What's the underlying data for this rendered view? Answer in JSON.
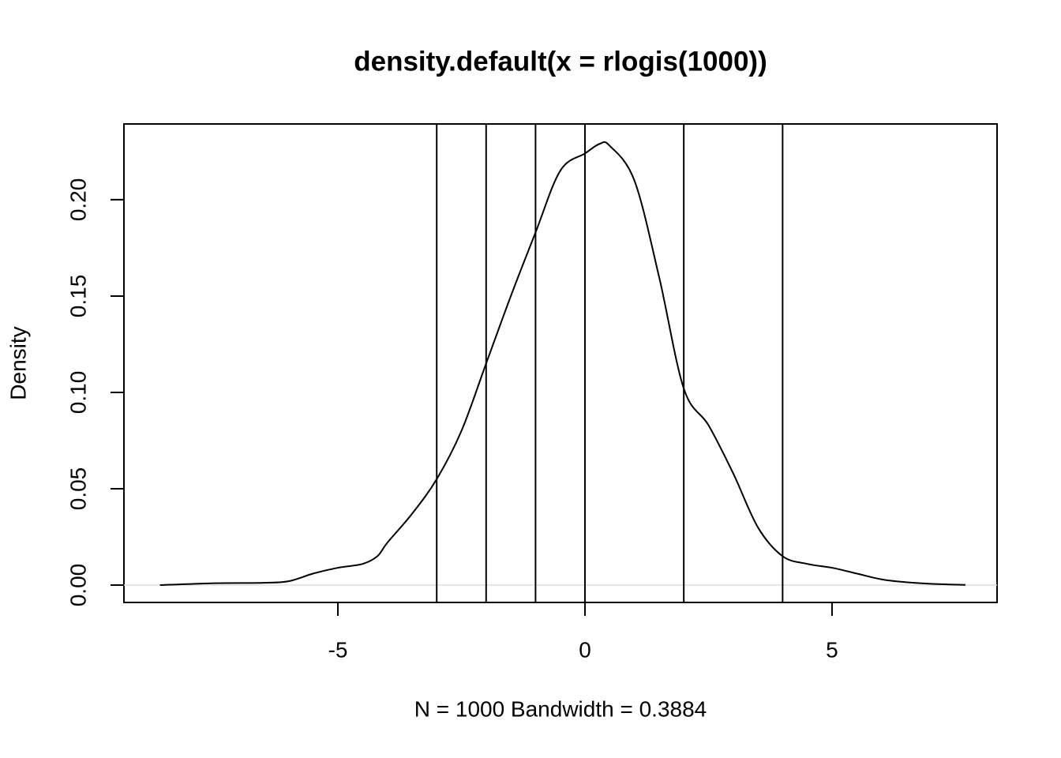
{
  "chart_data": {
    "type": "line",
    "title": "density.default(x = rlogis(1000))",
    "xlabel": "N = 1000   Bandwidth = 0.3884",
    "ylabel": "Density",
    "x": [
      -8.6,
      -7.5,
      -6.5,
      -6.0,
      -5.5,
      -5.0,
      -4.5,
      -4.2,
      -4.0,
      -3.5,
      -3.0,
      -2.5,
      -2.0,
      -1.5,
      -1.0,
      -0.5,
      0,
      0.3,
      0.5,
      1.0,
      1.5,
      2.0,
      2.5,
      3.0,
      3.5,
      4.0,
      4.5,
      5.0,
      5.5,
      6.0,
      6.5,
      7.0,
      7.7
    ],
    "series": [
      {
        "color": "#000000",
        "values": [
          0,
          0.001,
          0.0012,
          0.002,
          0.006,
          0.009,
          0.011,
          0.015,
          0.022,
          0.037,
          0.055,
          0.08,
          0.115,
          0.15,
          0.183,
          0.215,
          0.224,
          0.229,
          0.228,
          0.21,
          0.16,
          0.102,
          0.083,
          0.058,
          0.03,
          0.015,
          0.011,
          0.009,
          0.006,
          0.003,
          0.0015,
          0.0007,
          0.0001
        ]
      }
    ],
    "vlines": [
      -3,
      -2,
      -1,
      0,
      2,
      4
    ],
    "zero_line_color": "#dddddd",
    "xlim": [
      -9.33,
      8.34
    ],
    "ylim": [
      -0.009,
      0.2393
    ],
    "xticks": [
      -5,
      0,
      5
    ],
    "yticks": [
      {
        "value": 0,
        "label": "0.00"
      },
      {
        "value": 0.05,
        "label": "0.05"
      },
      {
        "value": 0.1,
        "label": "0.10"
      },
      {
        "value": 0.15,
        "label": "0.15"
      },
      {
        "value": 0.2,
        "label": "0.20"
      }
    ]
  }
}
